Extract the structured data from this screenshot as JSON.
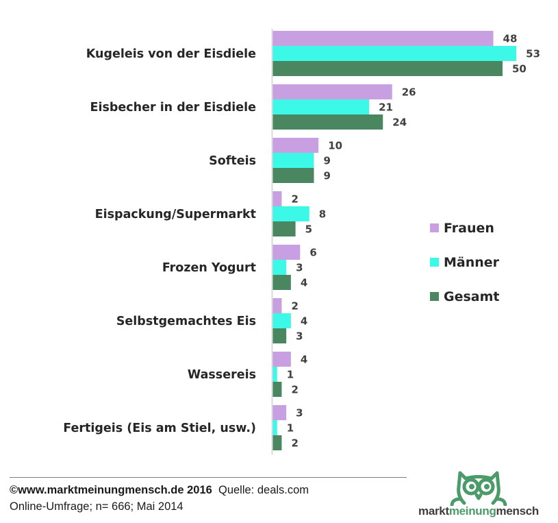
{
  "chart_data": {
    "type": "bar",
    "orientation": "horizontal",
    "title": "",
    "xlabel": "",
    "ylabel": "",
    "xlim": [
      0,
      55
    ],
    "grid": false,
    "legend_position": "right",
    "categories": [
      "Kugeleis von der Eisdiele",
      "Eisbecher in der Eisdiele",
      "Softeis",
      "Eispackung/Supermarkt",
      "Frozen Yogurt",
      "Selbstgemachtes Eis",
      "Wassereis",
      "Fertigeis (Eis am Stiel, usw.)"
    ],
    "series": [
      {
        "name": "Frauen",
        "color": "#c8a0e2",
        "values": [
          48,
          26,
          10,
          2,
          6,
          2,
          4,
          3
        ]
      },
      {
        "name": "Männer",
        "color": "#3cf8e6",
        "values": [
          53,
          21,
          9,
          8,
          3,
          4,
          1,
          1
        ]
      },
      {
        "name": "Gesamt",
        "color": "#4a8760",
        "values": [
          50,
          24,
          9,
          5,
          4,
          3,
          2,
          2
        ]
      }
    ]
  },
  "footer": {
    "copyright": "©www.marktmeinungmensch.de 2016",
    "source": "Quelle: deals.com",
    "survey": "Online-Umfrage; n= 666; Mai 2014"
  },
  "logo": {
    "part1": "markt",
    "part2": "meinung",
    "part3": "mensch",
    "icon": "owl-icon",
    "color": "#4a9a6a"
  }
}
